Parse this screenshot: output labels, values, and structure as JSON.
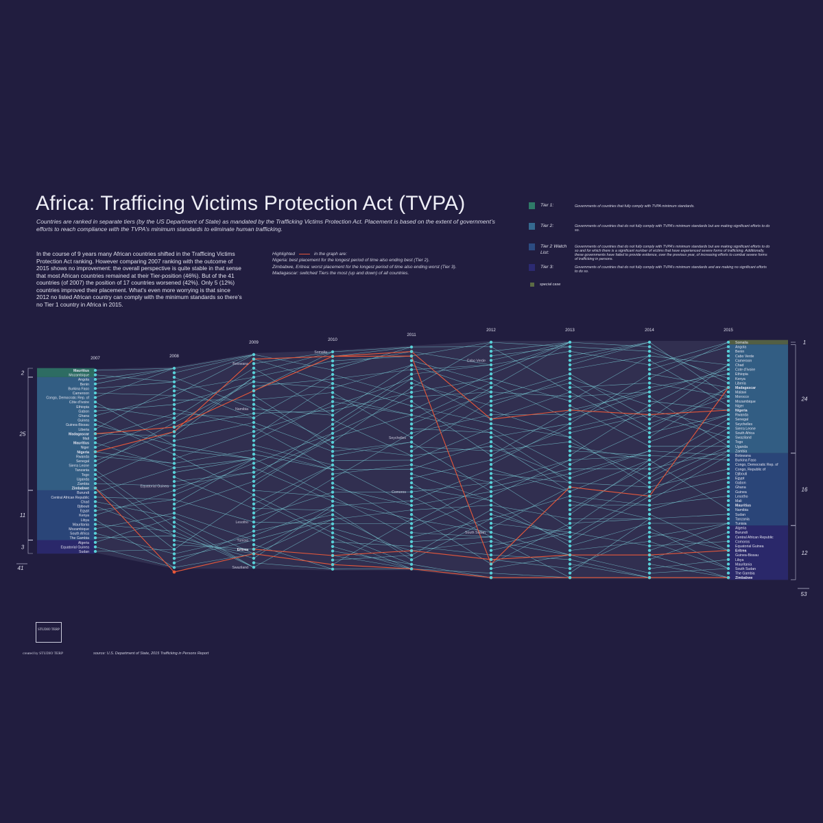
{
  "title": "Africa: Trafficing Victims Protection Act (TVPA)",
  "subtitle": "Countries are ranked in separate tiers (by the US Department of State) as mandated by the Trafficking Victims Protection Act. Placement is based on the extent of government’s efforts to reach compliance with the TVPA’s minimum standards to eliminate human trafficking.",
  "description": "In the course of 9 years many African countries shifted in the Trafficing Victims Protection Act ranking. However comparing 2007 ranking with the outcome of 2015 shows no improvement: the overall perspective is quite stable in that sense that most African countries remained at their Tier-position (46%). But of the 41 countries (of 2007) the position of 17 countries worsened (42%). Only 5 (12%) countries improved their placement. What’s even more worrying is that since 2012  no listed African country can comply with the minimum standards so there’s no Tier 1 country in Africa in 2015.",
  "highlight": {
    "lead_a": "Highlighted",
    "lead_b": "in the graph are:",
    "lines": [
      "Nigeria: best placement for the longest period of time also ending best (Tier 2).",
      "Zimbabwe, Eritrea: worst placement for the longest period of time also ending worst (Tier 3).",
      "Madagascar: switched Tiers the most (up and down) of all countries."
    ],
    "color": "#e8583a"
  },
  "legend": [
    {
      "label": "Tier 1:",
      "desc": "Governments of countries that fully comply with TVPA minimum standards.",
      "color": "#2f7a68"
    },
    {
      "label": "Tier 2:",
      "desc": "Governments of countries that do not fully comply with TVPA’s minimum standards but are making significant efforts to do so.",
      "color": "#35698f"
    },
    {
      "label": "Tier 2 Watch List:",
      "desc": "Governments of countries that do not fully comply with TVPA’s minimum standards but are making significant efforts to do so and for which there is a significant number of victims that have experienced severe forms of trafficking. Additionally, these governments have failed to provide evidence, over the previous year, of increasing efforts to combat severe forms of trafficking in persons.",
      "color": "#2c4c82"
    },
    {
      "label": "Tier 3:",
      "desc": "Governments of countries that do not fully comply with TVPA’s minimum standards and are making  no significant efforts to do so.",
      "color": "#2c2a72"
    },
    {
      "label": "special case",
      "desc": "",
      "color": "#5c6b45"
    }
  ],
  "credit": "created by STUDIO TERP",
  "logo_text": "STUDIO TERP",
  "source": "source: U.S. Department of State, 2015 Trafficking in Persons Report",
  "chart_data": {
    "type": "line",
    "years": [
      "2007",
      "2008",
      "2009",
      "2010",
      "2011",
      "2012",
      "2013",
      "2014",
      "2015"
    ],
    "country_counts": [
      41,
      45,
      48,
      49,
      50,
      53,
      53,
      53,
      53
    ],
    "tiers_2007": {
      "counts": [
        {
          "label": "2",
          "tier": "Tier 1"
        },
        {
          "label": "25",
          "tier": "Tier 2"
        },
        {
          "label": "11",
          "tier": "Tier 2 Watch List"
        },
        {
          "label": "3",
          "tier": "Tier 3"
        }
      ],
      "total": "41",
      "sizes": [
        2,
        25,
        11,
        3
      ],
      "countries": [
        "Mauritius",
        "Mozambique",
        "Angola",
        "Benin",
        "Burkina Faso",
        "Cameroon",
        "Congo, Democratic Rep. of",
        "Côte d’Ivoire",
        "Ethiopia",
        "Gabon",
        "Ghana",
        "Guinea",
        "Guinea-Bissau",
        "Liberia",
        "Madagascar",
        "Mali",
        "Mauritius",
        "Niger",
        "Nigeria",
        "Rwanda",
        "Senegal",
        "Sierra Leone",
        "Tanzania",
        "Togo",
        "Uganda",
        "Zambia",
        "Zimbabwe",
        "Burundi",
        "Central African Republic",
        "Chad",
        "Djibouti",
        "Egypt",
        "Kenya",
        "Libya",
        "Mauritania",
        "Mozambique",
        "South Africa",
        "The Gambia",
        "Algeria",
        "Equatorial Guinea",
        "Sudan"
      ]
    },
    "tiers_2015": {
      "counts": [
        {
          "label": "1",
          "tier": "special case"
        },
        {
          "label": "24",
          "tier": "Tier 2"
        },
        {
          "label": "16",
          "tier": "Tier 2 Watch List"
        },
        {
          "label": "12",
          "tier": "Tier 3"
        }
      ],
      "total": "53",
      "sizes": [
        1,
        24,
        16,
        12
      ],
      "countries": [
        "Somalia",
        "Angola",
        "Benin",
        "Cabo Verde",
        "Cameroon",
        "Chad",
        "Cote d’Ivoire",
        "Ethiopia",
        "Kenya",
        "Liberia",
        "Madagascar",
        "Malawi",
        "Morocco",
        "Mozambique",
        "Niger",
        "Nigeria",
        "Rwanda",
        "Senegal",
        "Seychelles",
        "Sierra Leone",
        "South Africa",
        "Swaziland",
        "Togo",
        "Uganda",
        "Zambia",
        "Botswana",
        "Burkina Faso",
        "Congo, Democratic Rep. of",
        "Congo, Republic of",
        "Djibouti",
        "Egypt",
        "Gabon",
        "Ghana",
        "Guinea",
        "Lesotho",
        "Mali",
        "Mauritius",
        "Namibia",
        "Sudan",
        "Tanzania",
        "Tunisia",
        "Algeria",
        "Burundi",
        "Central African Republic",
        "Comoros",
        "Equatorial Guinea",
        "Eritrea",
        "Guinea-Bissau",
        "Libya",
        "Mauritania",
        "South Sudan",
        "The Gambia",
        "Zimbabwe"
      ]
    },
    "bold_countries": [
      "Madagascar",
      "Mauritius",
      "Nigeria",
      "Zimbabwe",
      "Eritrea"
    ],
    "inline_labels": [
      {
        "year": "2008",
        "text": "Equatorial Guinea"
      },
      {
        "year": "2009",
        "text": "Botswana"
      },
      {
        "year": "2009",
        "text": "Namibia"
      },
      {
        "year": "2009",
        "text": "Lesotho"
      },
      {
        "year": "2009",
        "text": "Tunisia"
      },
      {
        "year": "2009",
        "text": "Eritrea"
      },
      {
        "year": "2009",
        "text": "Swaziland"
      },
      {
        "year": "2010",
        "text": "Somalia"
      },
      {
        "year": "2011",
        "text": "Seychelles"
      },
      {
        "year": "2011",
        "text": "Comoros"
      },
      {
        "year": "2012",
        "text": "Cabo Verde"
      },
      {
        "year": "2012",
        "text": "South Sudan"
      }
    ],
    "highlighted_series": [
      {
        "name": "Nigeria",
        "ranks": [
          19,
          15,
          2,
          2,
          2,
          18,
          16,
          17,
          16
        ]
      },
      {
        "name": "Zimbabwe",
        "ranks": [
          27,
          46,
          45,
          48,
          50,
          53,
          53,
          53,
          53
        ]
      },
      {
        "name": "Eritrea",
        "ranks": null,
        "ranks_from_2009": [
          44,
          46,
          46,
          49,
          48,
          48,
          47
        ]
      },
      {
        "name": "Madagascar",
        "ranks": [
          15,
          14,
          9,
          2,
          3,
          50,
          33,
          35,
          11
        ]
      }
    ],
    "colors": {
      "tier1": "#2f7a68",
      "tier2": "#35698f",
      "watch": "#2c4c82",
      "tier3": "#2c2a72",
      "special": "#5c6b45",
      "line": "#7fd9e0",
      "dot": "#58d0d8",
      "highlight": "#e8583a",
      "band": "#3f3e5e"
    }
  }
}
